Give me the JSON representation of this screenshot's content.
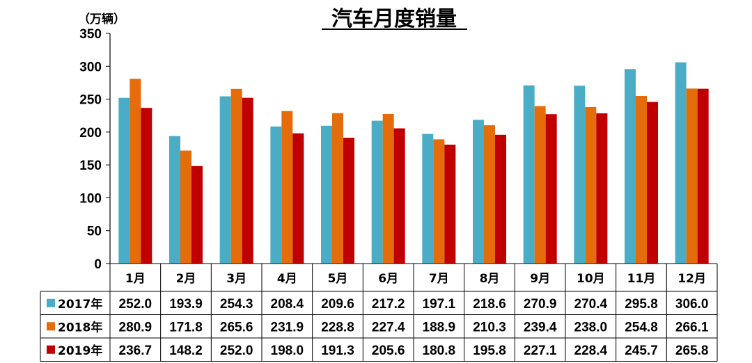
{
  "chart_data": {
    "type": "bar",
    "title": "汽车月度销量",
    "unit_label": "（万辆）",
    "categories": [
      "1月",
      "2月",
      "3月",
      "4月",
      "5月",
      "6月",
      "7月",
      "8月",
      "9月",
      "10月",
      "11月",
      "12月"
    ],
    "series": [
      {
        "name": "2017年",
        "color": "#4bacc6",
        "values": [
          252.0,
          193.9,
          254.3,
          208.4,
          209.6,
          217.2,
          197.1,
          218.6,
          270.9,
          270.4,
          295.8,
          306.0
        ]
      },
      {
        "name": "2018年",
        "color": "#e46c0a",
        "values": [
          280.9,
          171.8,
          265.6,
          231.9,
          228.8,
          227.4,
          188.9,
          210.3,
          239.4,
          238.0,
          254.8,
          266.1
        ]
      },
      {
        "name": "2019年",
        "color": "#c00000",
        "values": [
          236.7,
          148.2,
          252.0,
          198.0,
          191.3,
          205.6,
          180.8,
          195.8,
          227.1,
          228.4,
          245.7,
          265.8
        ]
      }
    ],
    "ylim": [
      0,
      350
    ],
    "yticks": [
      0,
      50,
      100,
      150,
      200,
      250,
      300,
      350
    ],
    "legend": "data-table",
    "grid": false
  }
}
